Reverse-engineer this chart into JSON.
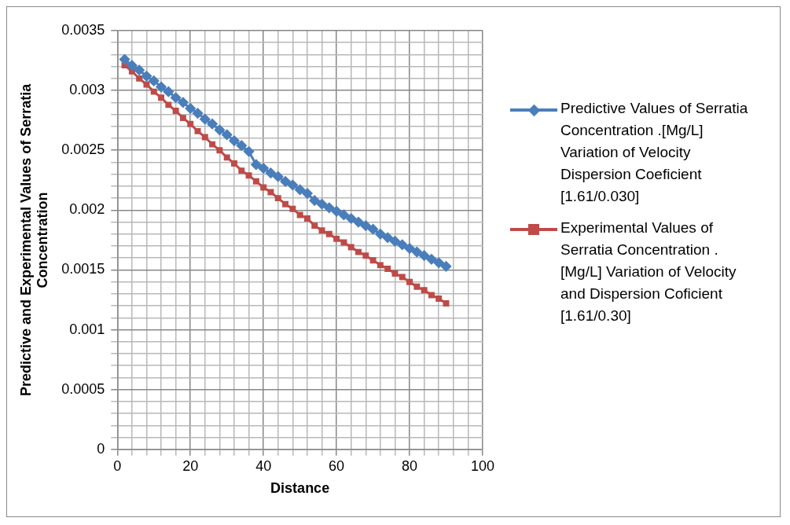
{
  "chart_data": {
    "type": "line",
    "xlabel": "Distance",
    "ylabel": "Predictive and Experimental Values of Serratia Concentration",
    "legend": "right",
    "grid": true,
    "xlim": [
      0,
      100
    ],
    "ylim": [
      0,
      0.0035
    ],
    "xticks": [
      0,
      {
        "value": 4,
        "label": null
      },
      {
        "value": 8,
        "label": null
      },
      {
        "value": 12,
        "label": null
      },
      {
        "value": 16,
        "label": null
      },
      20,
      {
        "value": 24,
        "label": null
      },
      {
        "value": 28,
        "label": null
      },
      {
        "value": 32,
        "label": null
      },
      {
        "value": 36,
        "label": null
      },
      40,
      {
        "value": 44,
        "label": null
      },
      {
        "value": 48,
        "label": null
      },
      {
        "value": 52,
        "label": null
      },
      {
        "value": 56,
        "label": null
      },
      60,
      {
        "value": 64,
        "label": null
      },
      {
        "value": 68,
        "label": null
      },
      {
        "value": 72,
        "label": null
      },
      {
        "value": 76,
        "label": null
      },
      80,
      {
        "value": 84,
        "label": null
      },
      {
        "value": 88,
        "label": null
      },
      {
        "value": 92,
        "label": null
      },
      {
        "value": 96,
        "label": null
      },
      100
    ],
    "yticks": [
      0,
      {
        "value": 0.0001,
        "label": null
      },
      {
        "value": 0.0002,
        "label": null
      },
      {
        "value": 0.0003,
        "label": null
      },
      {
        "value": 0.0004,
        "label": null
      },
      0.0005,
      {
        "value": 0.0006,
        "label": null
      },
      {
        "value": 0.0007,
        "label": null
      },
      {
        "value": 0.0008,
        "label": null
      },
      {
        "value": 0.0009,
        "label": null
      },
      0.001,
      {
        "value": 0.0011,
        "label": null
      },
      {
        "value": 0.0012,
        "label": null
      },
      {
        "value": 0.0013,
        "label": null
      },
      {
        "value": 0.0014,
        "label": null
      },
      0.0015,
      {
        "value": 0.0016,
        "label": null
      },
      {
        "value": 0.0017,
        "label": null
      },
      {
        "value": 0.0018,
        "label": null
      },
      {
        "value": 0.0019,
        "label": null
      },
      0.002,
      {
        "value": 0.0021,
        "label": null
      },
      {
        "value": 0.0022,
        "label": null
      },
      {
        "value": 0.0023,
        "label": null
      },
      {
        "value": 0.0024,
        "label": null
      },
      0.0025,
      {
        "value": 0.0026,
        "label": null
      },
      {
        "value": 0.0027,
        "label": null
      },
      {
        "value": 0.0028,
        "label": null
      },
      {
        "value": 0.0029,
        "label": null
      },
      0.003,
      {
        "value": 0.0031,
        "label": null
      },
      {
        "value": 0.0032,
        "label": null
      },
      {
        "value": 0.0033,
        "label": null
      },
      {
        "value": 0.0034,
        "label": null
      },
      0.0035
    ],
    "x": [
      2,
      4,
      6,
      8,
      10,
      12,
      14,
      16,
      18,
      20,
      22,
      24,
      26,
      28,
      30,
      32,
      34,
      36,
      38,
      40,
      42,
      44,
      46,
      48,
      50,
      52,
      54,
      56,
      58,
      60,
      62,
      64,
      66,
      68,
      70,
      72,
      74,
      76,
      78,
      80,
      82,
      84,
      86,
      88,
      90
    ],
    "series": [
      {
        "name": "Predictive Values of Serratia Concentration .[Mg/L] Variation of Velocity Dispersion Coeficient [1.61/0.030]",
        "color": "#4a7ebb",
        "marker": "diamond",
        "values": [
          0.00326,
          0.00321,
          0.00317,
          0.00312,
          0.00308,
          0.00303,
          0.00299,
          0.00294,
          0.0029,
          0.00285,
          0.00281,
          0.00276,
          0.00272,
          0.00267,
          0.00263,
          0.00258,
          0.00254,
          0.00249,
          0.00238,
          0.00235,
          0.00231,
          0.00228,
          0.00224,
          0.00221,
          0.00217,
          0.00214,
          0.00208,
          0.00205,
          0.00202,
          0.00199,
          0.00196,
          0.00193,
          0.0019,
          0.00187,
          0.00184,
          0.0018,
          0.00177,
          0.00174,
          0.00171,
          0.00168,
          0.00165,
          0.00162,
          0.00159,
          0.00156,
          0.00153
        ]
      },
      {
        "name": "Experimental  Values of Serratia Concentration .[Mg/L] Variation of Velocity and  Dispersion Coficient [1.61/0.30]",
        "color": "#be4b48",
        "marker": "square",
        "values": [
          0.00321,
          0.00316,
          0.0031,
          0.00305,
          0.00299,
          0.00294,
          0.00288,
          0.00283,
          0.00277,
          0.00272,
          0.00266,
          0.00261,
          0.00255,
          0.0025,
          0.00244,
          0.00239,
          0.00233,
          0.00229,
          0.00224,
          0.00219,
          0.00215,
          0.0021,
          0.00205,
          0.00201,
          0.00196,
          0.00193,
          0.00187,
          0.00183,
          0.0018,
          0.00176,
          0.00173,
          0.00169,
          0.00165,
          0.00162,
          0.00158,
          0.00154,
          0.00151,
          0.00147,
          0.00144,
          0.0014,
          0.00136,
          0.00133,
          0.00129,
          0.00126,
          0.00122
        ]
      }
    ]
  }
}
